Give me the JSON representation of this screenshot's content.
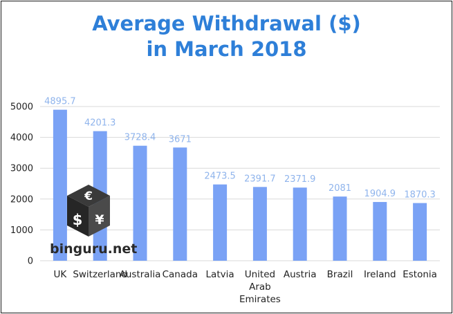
{
  "chart_data": {
    "type": "bar",
    "title": "Average Withdrawal ($)",
    "subtitle": "in March 2018",
    "categories": [
      "UK",
      "Switzerland",
      "Australia",
      "Canada",
      "Latvia",
      "United Arab Emirates",
      "Austria",
      "Brazil",
      "Ireland",
      "Estonia"
    ],
    "category_lines": [
      [
        "UK"
      ],
      [
        "Switzerland"
      ],
      [
        "Australia"
      ],
      [
        "Canada"
      ],
      [
        "Latvia"
      ],
      [
        "United",
        "Arab",
        "Emirates"
      ],
      [
        "Austria"
      ],
      [
        "Brazil"
      ],
      [
        "Ireland"
      ],
      [
        "Estonia"
      ]
    ],
    "values": [
      4895.7,
      4201.3,
      3728.4,
      3671,
      2473.5,
      2391.7,
      2371.9,
      2081,
      1904.9,
      1870.3
    ],
    "value_labels": [
      "4895.7",
      "4201.3",
      "3728.4",
      "3671",
      "2473.5",
      "2391.7",
      "2371.9",
      "2081",
      "1904.9",
      "1870.3"
    ],
    "ylim": [
      0,
      5000
    ],
    "yticks": [
      0,
      1000,
      2000,
      3000,
      4000,
      5000
    ],
    "grid": true,
    "bar_color": "#7aa2f5",
    "label_color": "#8fb4ec"
  },
  "watermark": {
    "text": "binguru.net",
    "icons": [
      "euro-icon",
      "dollar-icon",
      "yen-icon"
    ]
  }
}
